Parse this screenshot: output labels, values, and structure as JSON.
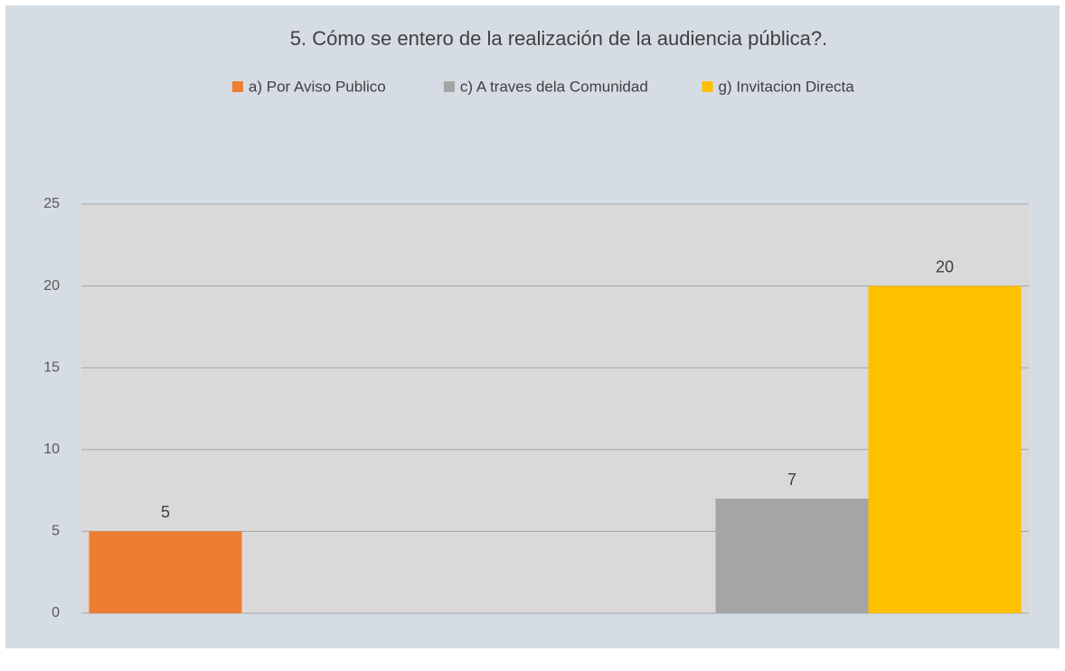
{
  "chart_data": {
    "type": "bar",
    "title": "5. Cómo se entero de la realización de la audiencia pública?.",
    "categories": [
      null,
      null
    ],
    "series": [
      {
        "name": "a) Por Aviso Publico",
        "color": "#ed7d31",
        "values": [
          5,
          null
        ]
      },
      {
        "name": "c) A traves dela Comunidad",
        "color": "#a5a5a5",
        "values": [
          null,
          7
        ]
      },
      {
        "name": "g) Invitacion Directa",
        "color": "#ffc000",
        "values": [
          null,
          20
        ]
      }
    ],
    "ylim": [
      0,
      25
    ],
    "yticks": [
      0,
      5,
      10,
      15,
      20,
      25
    ],
    "grid": true,
    "legend": "top"
  }
}
